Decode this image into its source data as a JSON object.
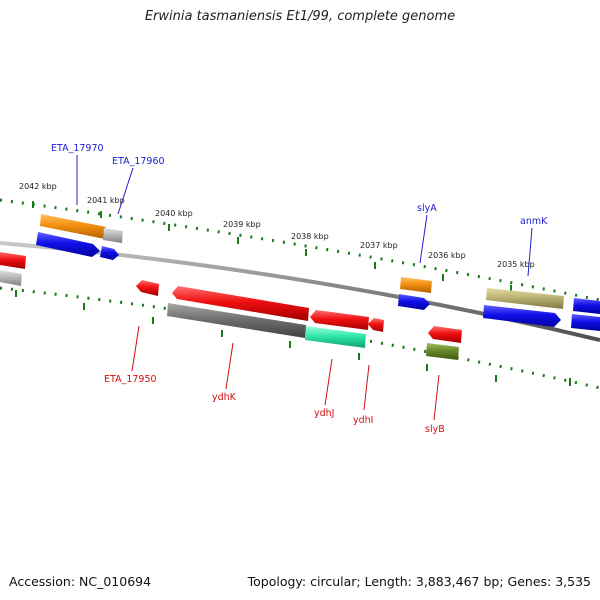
{
  "title": "Erwinia tasmaniensis Et1/99, complete genome",
  "footer": {
    "accession": "Accession: NC_010694",
    "summary": "Topology: circular; Length: 3,883,467 bp; Genes: 3,535"
  },
  "kbp_labels": [
    "2042 kbp",
    "2041 kbp",
    "2040 kbp",
    "2039 kbp",
    "2038 kbp",
    "2037 kbp",
    "2036 kbp",
    "2035 kbp"
  ],
  "genes_plus": [
    {
      "name": "ETA_17970",
      "color": "#3a3ac8"
    },
    {
      "name": "ETA_17960",
      "color": "#3a3ac8"
    },
    {
      "name": "slyA",
      "color": "#3a3ac8"
    },
    {
      "name": "anmK",
      "color": "#3a3ac8"
    }
  ],
  "genes_minus": [
    {
      "name": "ETA_17950",
      "color": "#d01010"
    },
    {
      "name": "ydhK",
      "color": "#d01010"
    },
    {
      "name": "ydhJ",
      "color": "#d01010"
    },
    {
      "name": "ydhI",
      "color": "#d01010"
    },
    {
      "name": "slyB",
      "color": "#d01010"
    }
  ],
  "colors": {
    "backbone": "#8a8a8a",
    "tick": "#1a7a1a",
    "blue": "#1010e0",
    "red": "#e81010",
    "orange": "#f08a10",
    "gray": "#808080",
    "lightgray": "#b8b8b8",
    "teal": "#20e0a0",
    "olive": "#b8b070",
    "darkolive": "#608020"
  }
}
